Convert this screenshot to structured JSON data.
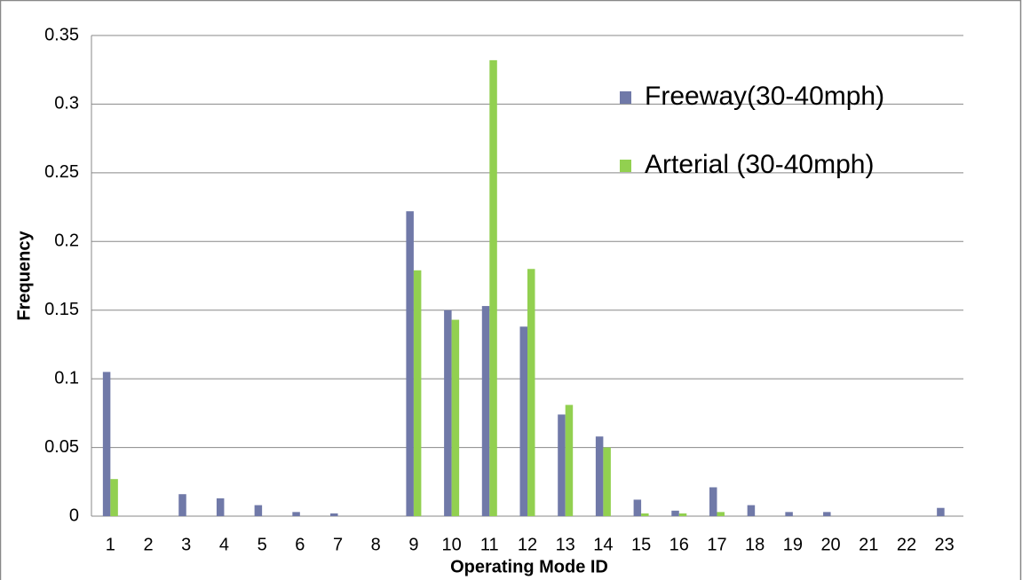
{
  "chart_data": {
    "type": "bar",
    "x_label": "Operating Mode ID",
    "y_label": "Frequency",
    "categories": [
      "1",
      "2",
      "3",
      "4",
      "5",
      "6",
      "7",
      "8",
      "9",
      "10",
      "11",
      "12",
      "13",
      "14",
      "15",
      "16",
      "17",
      "18",
      "19",
      "20",
      "21",
      "22",
      "23"
    ],
    "series": [
      {
        "name": "Freeway(30-40mph)",
        "color": "#7079a8",
        "values": [
          0.105,
          0,
          0.016,
          0.013,
          0.008,
          0.003,
          0.002,
          0,
          0.222,
          0.15,
          0.153,
          0.138,
          0.074,
          0.058,
          0.012,
          0.004,
          0.021,
          0.008,
          0.003,
          0.003,
          0,
          0,
          0.006
        ]
      },
      {
        "name": "Arterial (30-40mph)",
        "color": "#92d050",
        "values": [
          0.027,
          0,
          0,
          0,
          0,
          0,
          0,
          0,
          0.179,
          0.143,
          0.332,
          0.18,
          0.081,
          0.05,
          0.002,
          0.002,
          0.003,
          0,
          0,
          0,
          0,
          0,
          0
        ]
      }
    ],
    "ylim": [
      0,
      0.35
    ],
    "yticks": [
      0,
      0.05,
      0.1,
      0.15,
      0.2,
      0.25,
      0.3,
      0.35
    ],
    "grid": true,
    "legend": "upper right"
  }
}
